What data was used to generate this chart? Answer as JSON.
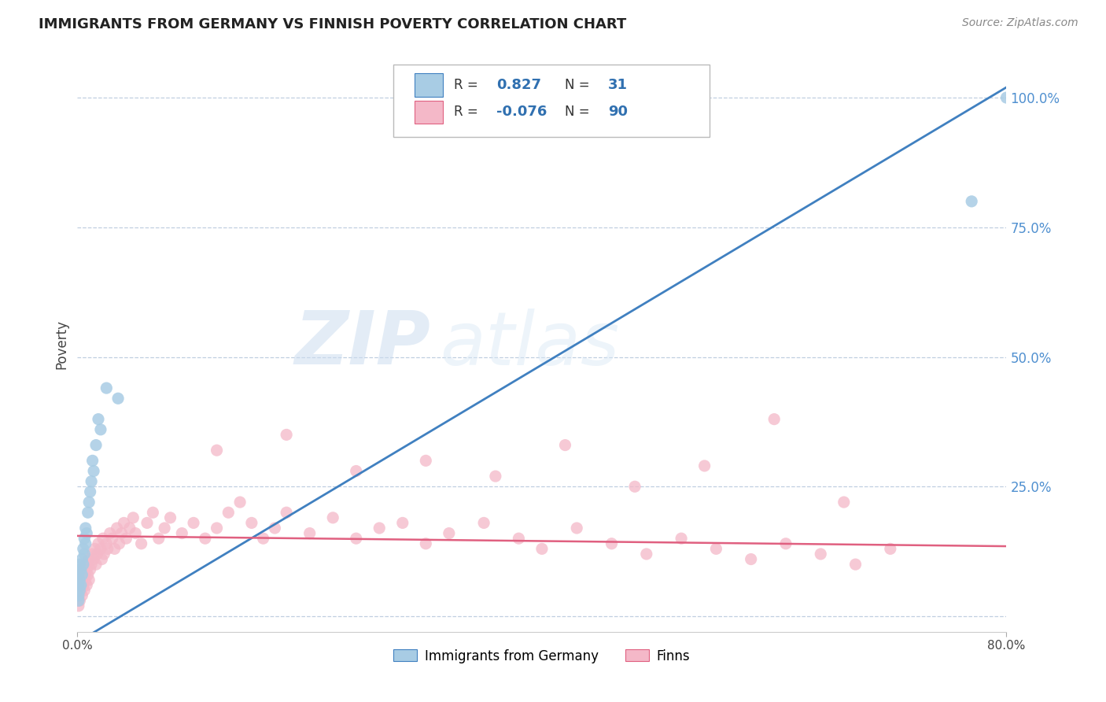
{
  "title": "IMMIGRANTS FROM GERMANY VS FINNISH POVERTY CORRELATION CHART",
  "source": "Source: ZipAtlas.com",
  "ylabel": "Poverty",
  "xmin": 0.0,
  "xmax": 0.8,
  "ymin": -0.03,
  "ymax": 1.08,
  "ytick_vals": [
    0.0,
    0.25,
    0.5,
    0.75,
    1.0
  ],
  "ytick_labels": [
    "",
    "25.0%",
    "50.0%",
    "75.0%",
    "100.0%"
  ],
  "xtick_vals": [
    0.0,
    0.8
  ],
  "xtick_labels": [
    "0.0%",
    "80.0%"
  ],
  "watermark_zip": "ZIP",
  "watermark_atlas": "atlas",
  "blue_fill": "#a8cce4",
  "blue_line": "#4080c0",
  "pink_fill": "#f4b8c8",
  "pink_line": "#e06080",
  "tick_color": "#5090d0",
  "grid_color": "#c0cfe0",
  "bg_color": "#ffffff",
  "blue_line_x": [
    0.0,
    0.8
  ],
  "blue_line_y": [
    -0.05,
    1.02
  ],
  "pink_line_x": [
    0.0,
    0.8
  ],
  "pink_line_y": [
    0.155,
    0.135
  ],
  "germany_x": [
    0.001,
    0.001,
    0.001,
    0.001,
    0.002,
    0.002,
    0.002,
    0.003,
    0.003,
    0.004,
    0.004,
    0.005,
    0.005,
    0.006,
    0.006,
    0.007,
    0.007,
    0.008,
    0.009,
    0.01,
    0.011,
    0.012,
    0.013,
    0.014,
    0.016,
    0.018,
    0.02,
    0.025,
    0.035,
    0.77,
    0.8
  ],
  "germany_y": [
    0.04,
    0.06,
    0.08,
    0.03,
    0.05,
    0.07,
    0.1,
    0.06,
    0.09,
    0.08,
    0.11,
    0.1,
    0.13,
    0.12,
    0.15,
    0.14,
    0.17,
    0.16,
    0.2,
    0.22,
    0.24,
    0.26,
    0.3,
    0.28,
    0.33,
    0.38,
    0.36,
    0.44,
    0.42,
    0.8,
    1.0
  ],
  "finns_x": [
    0.001,
    0.001,
    0.002,
    0.002,
    0.003,
    0.003,
    0.004,
    0.004,
    0.005,
    0.005,
    0.006,
    0.006,
    0.007,
    0.007,
    0.008,
    0.008,
    0.009,
    0.01,
    0.01,
    0.011,
    0.012,
    0.013,
    0.014,
    0.015,
    0.016,
    0.017,
    0.018,
    0.02,
    0.021,
    0.022,
    0.023,
    0.025,
    0.026,
    0.028,
    0.03,
    0.032,
    0.034,
    0.036,
    0.038,
    0.04,
    0.042,
    0.045,
    0.048,
    0.05,
    0.055,
    0.06,
    0.065,
    0.07,
    0.075,
    0.08,
    0.09,
    0.1,
    0.11,
    0.12,
    0.13,
    0.14,
    0.15,
    0.16,
    0.17,
    0.18,
    0.2,
    0.22,
    0.24,
    0.26,
    0.28,
    0.3,
    0.32,
    0.35,
    0.38,
    0.4,
    0.43,
    0.46,
    0.49,
    0.52,
    0.55,
    0.58,
    0.61,
    0.64,
    0.67,
    0.7,
    0.12,
    0.18,
    0.24,
    0.3,
    0.36,
    0.42,
    0.48,
    0.54,
    0.6,
    0.66
  ],
  "finns_y": [
    0.05,
    0.02,
    0.06,
    0.03,
    0.05,
    0.08,
    0.04,
    0.07,
    0.06,
    0.09,
    0.05,
    0.08,
    0.07,
    0.1,
    0.06,
    0.09,
    0.08,
    0.07,
    0.11,
    0.09,
    0.1,
    0.12,
    0.11,
    0.13,
    0.1,
    0.12,
    0.14,
    0.13,
    0.11,
    0.15,
    0.12,
    0.14,
    0.13,
    0.16,
    0.15,
    0.13,
    0.17,
    0.14,
    0.16,
    0.18,
    0.15,
    0.17,
    0.19,
    0.16,
    0.14,
    0.18,
    0.2,
    0.15,
    0.17,
    0.19,
    0.16,
    0.18,
    0.15,
    0.17,
    0.2,
    0.22,
    0.18,
    0.15,
    0.17,
    0.2,
    0.16,
    0.19,
    0.15,
    0.17,
    0.18,
    0.14,
    0.16,
    0.18,
    0.15,
    0.13,
    0.17,
    0.14,
    0.12,
    0.15,
    0.13,
    0.11,
    0.14,
    0.12,
    0.1,
    0.13,
    0.32,
    0.35,
    0.28,
    0.3,
    0.27,
    0.33,
    0.25,
    0.29,
    0.38,
    0.22
  ]
}
